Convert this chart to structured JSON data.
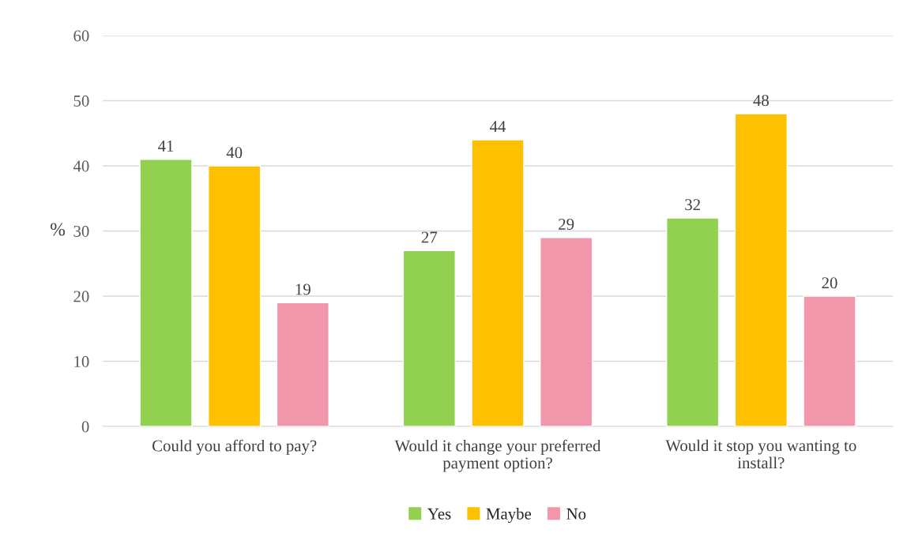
{
  "chart_data": {
    "type": "bar",
    "ylabel": "%",
    "categories": [
      "Could you afford to pay?",
      "Would it change your preferred payment option?",
      "Would it stop you wanting to install?"
    ],
    "series": [
      {
        "name": "Yes",
        "color": "#92d050",
        "values": [
          41,
          27,
          32
        ]
      },
      {
        "name": "Maybe",
        "color": "#ffc000",
        "values": [
          40,
          44,
          48
        ]
      },
      {
        "name": "No",
        "color": "#f296ab",
        "values": [
          19,
          29,
          20
        ]
      }
    ],
    "ylim": [
      0,
      60
    ],
    "yticks": [
      0,
      10,
      20,
      30,
      40,
      50,
      60
    ],
    "grid": "y",
    "legend": "bottom",
    "data_labels": true
  }
}
